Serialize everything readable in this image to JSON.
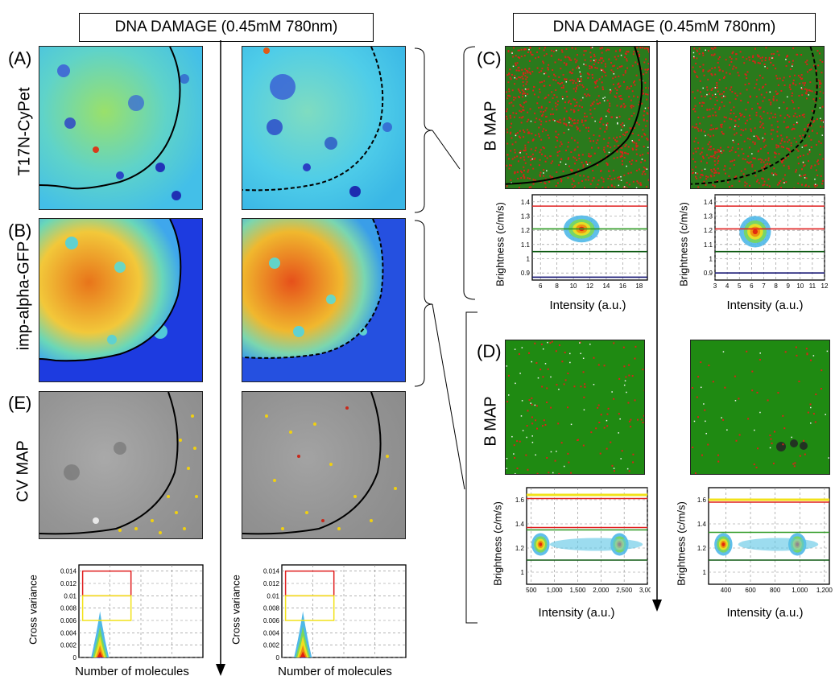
{
  "titles": {
    "left": "DNA DAMAGE (0.45mM 780nm)",
    "right": "DNA DAMAGE (0.45mM 780nm)"
  },
  "panels": {
    "A": {
      "letter": "(A)",
      "label": "T17N-CyPet"
    },
    "B": {
      "letter": "(B)",
      "label": "imp-alpha-GFP"
    },
    "C": {
      "letter": "(C)",
      "label": "B MAP"
    },
    "D": {
      "letter": "(D)",
      "label": "B MAP"
    },
    "E": {
      "letter": "(E)",
      "label": "CV MAP"
    }
  },
  "plots": {
    "C": {
      "ylabel": "Brightness (c/m/s)",
      "xlabel": "Intensity (a.u.)"
    },
    "D": {
      "ylabel": "Brightness (c/m/s)",
      "xlabel": "Intensity (a.u.)"
    },
    "E": {
      "ylabel": "Cross variance",
      "xlabel": "Number of molecules"
    }
  },
  "colors": {
    "cyan": "#3fc7e8",
    "blue": "#1a3fd6",
    "red": "#d42a12",
    "green": "#1e7a16",
    "gray": "#8a8a8a",
    "yellow": "#f2e21a"
  },
  "chart_data": [
    {
      "type": "scatter",
      "id": "C-left",
      "xlabel": "Intensity (a.u.)",
      "ylabel": "Brightness (c/m/s)",
      "x_ticks": [
        "6",
        "8",
        "10",
        "12",
        "14",
        "16",
        "18"
      ],
      "y_ticks": [
        "0.9",
        "1",
        "1.1",
        "1.2",
        "1.3",
        "1.4"
      ],
      "xlim": [
        5,
        19
      ],
      "ylim": [
        0.85,
        1.45
      ],
      "cluster": {
        "x": 11,
        "y": 1.21
      },
      "thresholds": [
        {
          "y": 1.37,
          "color": "red"
        },
        {
          "y": 1.21,
          "color": "green"
        },
        {
          "y": 1.05,
          "color": "darkgreen"
        },
        {
          "y": 0.87,
          "color": "navy"
        }
      ]
    },
    {
      "type": "scatter",
      "id": "C-right",
      "xlabel": "Intensity (a.u.)",
      "ylabel": "Brightness (c/m/s)",
      "x_ticks": [
        "3",
        "4",
        "5",
        "6",
        "7",
        "8",
        "9",
        "10",
        "11",
        "12"
      ],
      "y_ticks": [
        "0.9",
        "1",
        "1.1",
        "1.2",
        "1.3",
        "1.4"
      ],
      "xlim": [
        3,
        12
      ],
      "ylim": [
        0.85,
        1.45
      ],
      "cluster": {
        "x": 6.3,
        "y": 1.19
      },
      "thresholds": [
        {
          "y": 1.37,
          "color": "red"
        },
        {
          "y": 1.21,
          "color": "red"
        },
        {
          "y": 1.05,
          "color": "darkgreen"
        },
        {
          "y": 0.9,
          "color": "navy"
        }
      ]
    },
    {
      "type": "scatter",
      "id": "D-left",
      "xlabel": "Intensity (a.u.)",
      "ylabel": "Brightness (c/m/s)",
      "x_ticks": [
        "500",
        "1,000",
        "1,500",
        "2,000",
        "2,500",
        "3,000"
      ],
      "y_ticks": [
        "1",
        "1.2",
        "1.4",
        "1.6"
      ],
      "xlim": [
        400,
        3000
      ],
      "ylim": [
        0.9,
        1.7
      ],
      "clusters": [
        {
          "x": 700,
          "y": 1.23
        },
        {
          "x": 2400,
          "y": 1.23
        }
      ],
      "thresholds": [
        {
          "y": 1.64,
          "color": "yellow"
        },
        {
          "y": 1.61,
          "color": "red"
        },
        {
          "y": 1.37,
          "color": "red"
        },
        {
          "y": 1.35,
          "color": "green"
        },
        {
          "y": 1.1,
          "color": "darkgreen"
        }
      ]
    },
    {
      "type": "scatter",
      "id": "D-right",
      "xlabel": "Intensity (a.u.)",
      "ylabel": "Brightness (c/m/s)",
      "x_ticks": [
        "400",
        "600",
        "800",
        "1,000",
        "1,200"
      ],
      "y_ticks": [
        "1",
        "1.2",
        "1.4",
        "1.6"
      ],
      "xlim": [
        260,
        1240
      ],
      "ylim": [
        0.9,
        1.7
      ],
      "clusters": [
        {
          "x": 380,
          "y": 1.23
        },
        {
          "x": 980,
          "y": 1.23
        }
      ],
      "thresholds": [
        {
          "y": 1.6,
          "color": "yellow"
        },
        {
          "y": 1.58,
          "color": "red"
        },
        {
          "y": 1.33,
          "color": "green"
        },
        {
          "y": 1.1,
          "color": "darkgreen"
        }
      ]
    },
    {
      "type": "scatter",
      "id": "E-left",
      "xlabel": "Number of molecules",
      "ylabel": "Cross variance",
      "y_ticks": [
        "0",
        "0.002",
        "0.004",
        "0.006",
        "0.008",
        "0.01",
        "0.012",
        "0.014"
      ],
      "ylim": [
        0,
        0.015
      ],
      "boxes": [
        {
          "y0": 0.01,
          "y1": 0.014,
          "color": "red"
        },
        {
          "y0": 0.006,
          "y1": 0.01,
          "color": "yellow"
        }
      ]
    },
    {
      "type": "scatter",
      "id": "E-right",
      "xlabel": "Number of molecules",
      "ylabel": "Cross variance",
      "y_ticks": [
        "0",
        "0.002",
        "0.004",
        "0.006",
        "0.008",
        "0.01",
        "0.012",
        "0.014"
      ],
      "ylim": [
        0,
        0.015
      ],
      "boxes": [
        {
          "y0": 0.01,
          "y1": 0.014,
          "color": "red"
        },
        {
          "y0": 0.006,
          "y1": 0.01,
          "color": "yellow"
        }
      ]
    }
  ]
}
